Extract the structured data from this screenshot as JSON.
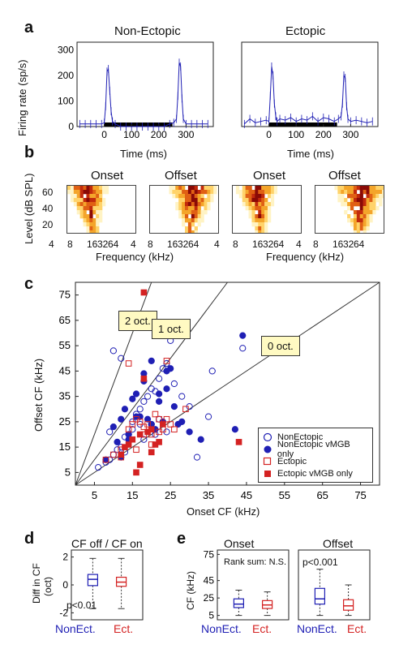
{
  "panel_a": {
    "letter": "a",
    "titles": [
      "Non-Ectopic",
      "Ectopic"
    ],
    "ylabel": "Firing rate (sp/s)",
    "xlabel": "Time (ms)",
    "yticks": [
      "300",
      "200",
      "100",
      "0"
    ],
    "xticks": [
      "0",
      "100",
      "200",
      "300"
    ]
  },
  "panel_b": {
    "letter": "b",
    "headers": [
      "Onset",
      "Offset",
      "Onset",
      "Offset"
    ],
    "ylabel": "Level (dB SPL)",
    "yticks": [
      "60",
      "40",
      "20"
    ],
    "xticks": [
      "4",
      "8",
      "16",
      "32",
      "64"
    ],
    "xlabel": "Frequency (kHz)"
  },
  "panel_c": {
    "letter": "c",
    "xlabel": "Onset CF (kHz)",
    "ylabel": "Offset CF (kHz)",
    "ticks": [
      "5",
      "15",
      "25",
      "35",
      "45",
      "55",
      "65",
      "75"
    ],
    "tick_values": [
      5,
      15,
      25,
      35,
      45,
      55,
      65,
      75
    ],
    "callouts": [
      "2 oct.",
      "1 oct.",
      "0 oct."
    ],
    "legend": [
      "NonEctopic",
      "NonEctopic vMGB only",
      "Ectopic",
      "Ectopic vMGB only"
    ]
  },
  "panel_d": {
    "letter": "d",
    "title": "CF off / CF on",
    "ylabel_1": "Diff in CF",
    "ylabel_2": "(oct)",
    "yticks": [
      "2",
      "0",
      "-2"
    ],
    "stat": "p<0.01",
    "groups": [
      "NonEct.",
      "Ect."
    ]
  },
  "panel_e": {
    "letter": "e",
    "titles": [
      "Onset",
      "Offset"
    ],
    "ylabel": "CF (kHz)",
    "yticks": [
      "75",
      "45",
      "25",
      "5"
    ],
    "stats": [
      "Rank sum: N.S.",
      "p<0.001"
    ],
    "groups": [
      "NonEct.",
      "Ect."
    ]
  },
  "colors": {
    "nonectopic": "#1f1fb4",
    "ectopic": "#d42222",
    "axis": "#222222"
  },
  "chart_data": [
    {
      "type": "line",
      "panel": "a-non-ectopic",
      "xlabel": "Time (ms)",
      "ylabel": "Firing rate (sp/s)",
      "xlim": [
        -100,
        400
      ],
      "ylim": [
        0,
        330
      ],
      "x": [
        -90,
        -70,
        -50,
        -30,
        -10,
        0,
        5,
        10,
        15,
        20,
        25,
        30,
        40,
        60,
        80,
        100,
        120,
        140,
        160,
        180,
        200,
        220,
        240,
        255,
        265,
        270,
        275,
        280,
        285,
        290,
        300,
        320,
        340,
        360,
        380
      ],
      "y": [
        10,
        10,
        10,
        10,
        10,
        15,
        80,
        215,
        225,
        140,
        60,
        20,
        10,
        0,
        0,
        0,
        0,
        0,
        0,
        0,
        0,
        0,
        10,
        15,
        30,
        120,
        250,
        235,
        110,
        30,
        10,
        10,
        10,
        10,
        10
      ]
    },
    {
      "type": "line",
      "panel": "a-ectopic",
      "xlabel": "Time (ms)",
      "xlim": [
        -100,
        400
      ],
      "ylim": [
        0,
        330
      ],
      "x": [
        -90,
        -70,
        -50,
        -30,
        -10,
        0,
        5,
        10,
        15,
        20,
        25,
        30,
        40,
        60,
        80,
        100,
        120,
        140,
        160,
        180,
        200,
        220,
        240,
        255,
        265,
        270,
        275,
        280,
        285,
        290,
        300,
        320,
        340,
        360,
        380
      ],
      "y": [
        10,
        30,
        15,
        20,
        25,
        20,
        120,
        235,
        200,
        90,
        40,
        20,
        30,
        25,
        35,
        20,
        30,
        25,
        40,
        20,
        35,
        30,
        20,
        30,
        40,
        90,
        200,
        190,
        80,
        30,
        20,
        25,
        20,
        15,
        20
      ]
    },
    {
      "type": "scatter",
      "panel": "c",
      "xlabel": "Onset CF (kHz)",
      "ylabel": "Offset CF (kHz)",
      "xlim": [
        0,
        80
      ],
      "ylim": [
        0,
        80
      ],
      "series": [
        {
          "name": "NonEctopic",
          "x": [
            6,
            8,
            9,
            10,
            11,
            12,
            13,
            14,
            15,
            16,
            17,
            18,
            19,
            20,
            21,
            22,
            23,
            24,
            25,
            26,
            28,
            30,
            32,
            35,
            36,
            44,
            10,
            12,
            15,
            18,
            20,
            22,
            24,
            9,
            13,
            17,
            21
          ],
          "y": [
            7,
            9,
            10,
            12,
            14,
            15,
            13,
            20,
            25,
            28,
            30,
            33,
            35,
            38,
            37,
            42,
            46,
            48,
            57,
            40,
            35,
            31,
            11,
            27,
            45,
            54,
            53,
            50,
            22,
            18,
            24,
            26,
            21,
            21,
            19,
            24,
            20
          ]
        },
        {
          "name": "NonEctopic vMGB only",
          "x": [
            8,
            10,
            11,
            12,
            13,
            14,
            15,
            16,
            17,
            18,
            19,
            20,
            21,
            22,
            23,
            24,
            25,
            26,
            27,
            28,
            30,
            33,
            42,
            44,
            14,
            16,
            18,
            20,
            22,
            12,
            24
          ],
          "y": [
            10,
            23,
            17,
            26,
            30,
            20,
            34,
            36,
            27,
            41,
            26,
            24,
            22,
            36,
            25,
            45,
            46,
            31,
            24,
            25,
            21,
            18,
            22,
            59,
            18,
            27,
            44,
            49,
            33,
            11,
            38
          ]
        },
        {
          "name": "Ectopic",
          "x": [
            8,
            10,
            12,
            14,
            15,
            16,
            17,
            18,
            19,
            20,
            21,
            22,
            23,
            24,
            25,
            26,
            29,
            14,
            16,
            18,
            20,
            22,
            24,
            12
          ],
          "y": [
            10,
            12,
            14,
            22,
            24,
            26,
            25,
            23,
            24,
            20,
            28,
            26,
            22,
            49,
            24,
            22,
            30,
            48,
            14,
            20,
            16,
            21,
            26,
            11
          ]
        },
        {
          "name": "Ectopic vMGB only",
          "x": [
            12,
            13,
            14,
            15,
            16,
            17,
            18,
            19,
            20,
            21,
            22,
            23,
            17,
            18,
            20,
            43
          ],
          "y": [
            12,
            15,
            16,
            18,
            5,
            20,
            76,
            21,
            22,
            16,
            17,
            24,
            8,
            42,
            13,
            17
          ]
        }
      ]
    },
    {
      "type": "bar",
      "panel": "d",
      "title": "CF off / CF on",
      "categories": [
        "NonEct.",
        "Ect."
      ],
      "series": [
        {
          "name": "NonEct.",
          "min": -1.7,
          "q1": -0.05,
          "median": 0.4,
          "q3": 0.75,
          "max": 1.9
        },
        {
          "name": "Ect.",
          "min": -1.7,
          "q1": -0.1,
          "median": 0.2,
          "q3": 0.55,
          "max": 1.9
        }
      ],
      "ylim": [
        -2.5,
        2.5
      ]
    },
    {
      "type": "bar",
      "panel": "e-onset",
      "title": "Onset",
      "categories": [
        "NonEct.",
        "Ect."
      ],
      "series": [
        {
          "name": "NonEct.",
          "min": 5,
          "q1": 14,
          "median": 18,
          "q3": 24,
          "max": 34
        },
        {
          "name": "Ect.",
          "min": 5,
          "q1": 13,
          "median": 17,
          "q3": 22,
          "max": 32
        }
      ],
      "ylim": [
        0,
        80
      ]
    },
    {
      "type": "bar",
      "panel": "e-offset",
      "title": "Offset",
      "categories": [
        "NonEct.",
        "Ect."
      ],
      "series": [
        {
          "name": "NonEct.",
          "min": 5,
          "q1": 18,
          "median": 24,
          "q3": 36,
          "max": 58
        },
        {
          "name": "Ect.",
          "min": 5,
          "q1": 11,
          "median": 16,
          "q3": 23,
          "max": 40
        }
      ],
      "ylim": [
        0,
        80
      ]
    }
  ]
}
